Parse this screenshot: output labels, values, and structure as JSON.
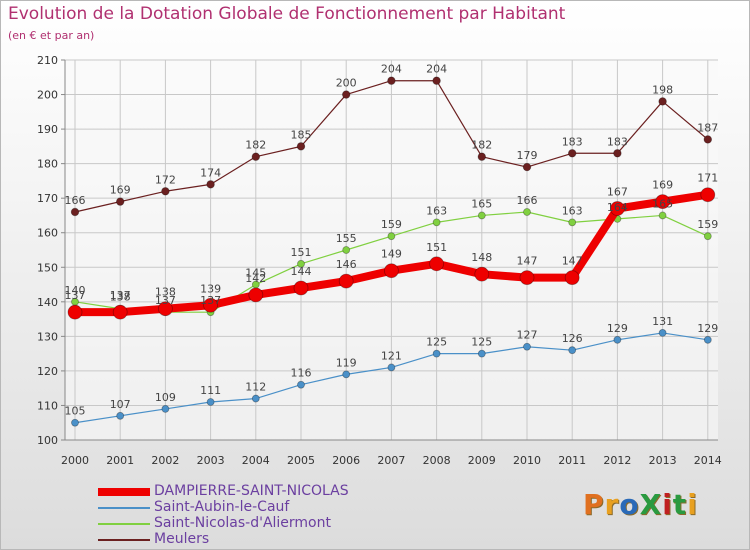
{
  "header": {
    "title": "Evolution de la Dotation Globale de Fonctionnement par Habitant",
    "subtitle": "(en € et par an)"
  },
  "logo": {
    "text": "ProXiti",
    "colors": [
      "#e07020",
      "#e8a020",
      "#2a6ab8",
      "#2a9a40",
      "#c02020",
      "#2a9a40",
      "#e8a020"
    ]
  },
  "chart_data": {
    "type": "line",
    "x": [
      "2000",
      "2001",
      "2002",
      "2003",
      "2004",
      "2005",
      "2006",
      "2007",
      "2008",
      "2009",
      "2010",
      "2011",
      "2012",
      "2013",
      "2014"
    ],
    "ylim": [
      100,
      210
    ],
    "yticks": [
      100,
      110,
      120,
      130,
      140,
      150,
      160,
      170,
      180,
      190,
      200,
      210
    ],
    "grid": true,
    "legend_position": "bottom-left",
    "series": [
      {
        "name": "DAMPIERRE-SAINT-NICOLAS",
        "color": "#ee0000",
        "values": [
          137,
          137,
          138,
          139,
          142,
          144,
          146,
          149,
          151,
          148,
          147,
          147,
          167,
          169,
          171
        ]
      },
      {
        "name": "Saint-Aubin-le-Cauf",
        "color": "#4a90c8",
        "values": [
          105,
          107,
          109,
          111,
          112,
          116,
          119,
          121,
          125,
          125,
          127,
          126,
          129,
          131,
          129
        ]
      },
      {
        "name": "Saint-Nicolas-d'Aliermont",
        "color": "#80d040",
        "values": [
          140,
          138,
          137,
          137,
          145,
          151,
          155,
          159,
          163,
          165,
          166,
          163,
          164,
          165,
          159
        ]
      },
      {
        "name": "Meulers",
        "color": "#6b2020",
        "values": [
          166,
          169,
          172,
          174,
          182,
          185,
          200,
          204,
          204,
          182,
          179,
          183,
          183,
          198,
          187
        ]
      }
    ]
  }
}
